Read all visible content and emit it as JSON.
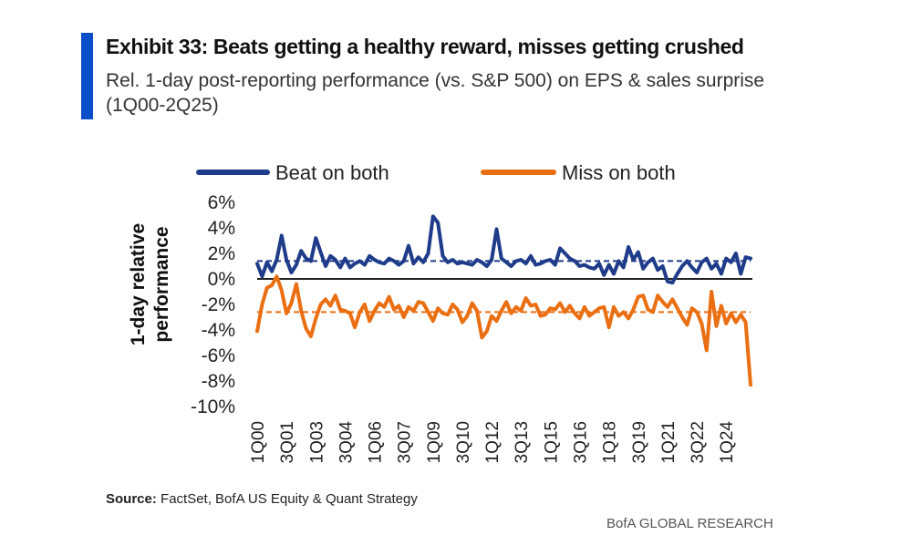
{
  "header": {
    "title": "Exhibit 33: Beats getting a healthy reward, misses getting crushed",
    "subtitle": "Rel. 1-day post-reporting performance (vs. S&P 500) on EPS & sales surprise (1Q00-2Q25)"
  },
  "footer": {
    "source_label": "Source:",
    "source_text": "FactSet, BofA US Equity & Quant Strategy",
    "brand": "BofA GLOBAL RESEARCH"
  },
  "colors": {
    "accent": "#0a4fc9",
    "beat": "#1f3c8a",
    "miss": "#ea6f12"
  },
  "chart_data": {
    "type": "line",
    "title": "Exhibit 33: Beats getting a healthy reward, misses getting crushed",
    "ylabel": "1-day relative performance",
    "xlabel": "",
    "ylim": [
      -10,
      6
    ],
    "y_ticks": [
      "6%",
      "4%",
      "2%",
      "0%",
      "-2%",
      "-4%",
      "-6%",
      "-8%",
      "-10%"
    ],
    "y_tick_values": [
      6,
      4,
      2,
      0,
      -2,
      -4,
      -6,
      -8,
      -10
    ],
    "x_start": "1Q00",
    "x_end": "2Q25",
    "n_points": 102,
    "x_ticks": [
      {
        "label": "1Q00",
        "index": 0
      },
      {
        "label": "3Q01",
        "index": 6
      },
      {
        "label": "1Q03",
        "index": 12
      },
      {
        "label": "3Q04",
        "index": 18
      },
      {
        "label": "1Q06",
        "index": 24
      },
      {
        "label": "3Q07",
        "index": 30
      },
      {
        "label": "1Q09",
        "index": 36
      },
      {
        "label": "3Q10",
        "index": 42
      },
      {
        "label": "1Q12",
        "index": 48
      },
      {
        "label": "3Q13",
        "index": 54
      },
      {
        "label": "1Q15",
        "index": 60
      },
      {
        "label": "3Q16",
        "index": 66
      },
      {
        "label": "1Q18",
        "index": 72
      },
      {
        "label": "3Q19",
        "index": 78
      },
      {
        "label": "1Q21",
        "index": 84
      },
      {
        "label": "3Q22",
        "index": 90
      },
      {
        "label": "1Q24",
        "index": 96
      }
    ],
    "legend_position": "top",
    "series": [
      {
        "name": "Beat on both",
        "average": 1.4,
        "values": [
          1.2,
          0.2,
          1.3,
          0.6,
          1.5,
          3.4,
          1.5,
          0.5,
          1.1,
          2.2,
          1.6,
          1.4,
          3.2,
          2.1,
          1.0,
          1.8,
          1.5,
          0.9,
          1.6,
          0.9,
          1.2,
          1.4,
          1.1,
          1.8,
          1.5,
          1.3,
          1.2,
          1.6,
          1.4,
          1.1,
          1.4,
          2.6,
          1.2,
          1.7,
          1.3,
          2.0,
          4.9,
          4.4,
          1.8,
          1.3,
          1.5,
          1.2,
          1.3,
          1.2,
          1.1,
          1.5,
          1.3,
          1.0,
          1.5,
          3.9,
          1.6,
          1.3,
          1.0,
          1.4,
          1.5,
          1.2,
          1.8,
          1.1,
          1.2,
          1.4,
          1.5,
          1.1,
          2.4,
          2.0,
          1.6,
          1.4,
          1.0,
          1.1,
          0.9,
          0.8,
          1.2,
          0.3,
          1.1,
          0.4,
          1.4,
          0.9,
          2.5,
          1.5,
          2.1,
          0.8,
          1.3,
          1.6,
          0.7,
          1.0,
          -0.2,
          -0.3,
          0.4,
          1.0,
          1.4,
          0.9,
          0.5,
          1.3,
          1.6,
          0.8,
          1.2,
          0.4,
          1.6,
          1.3,
          2.0,
          0.4,
          1.7,
          1.6
        ],
        "color": "#1f3c8a"
      },
      {
        "name": "Miss on both",
        "average": -2.6,
        "values": [
          -4.1,
          -2.0,
          -0.7,
          -0.5,
          0.2,
          -0.9,
          -2.7,
          -1.9,
          -0.4,
          -2.5,
          -3.9,
          -4.5,
          -3.1,
          -2.0,
          -1.6,
          -2.1,
          -1.3,
          -2.4,
          -2.5,
          -2.7,
          -3.8,
          -2.6,
          -2.0,
          -3.3,
          -2.5,
          -1.9,
          -2.2,
          -1.4,
          -2.4,
          -2.1,
          -3.0,
          -2.2,
          -2.5,
          -1.8,
          -1.9,
          -2.6,
          -3.3,
          -2.3,
          -2.7,
          -2.8,
          -2.0,
          -2.4,
          -3.4,
          -2.9,
          -1.9,
          -2.5,
          -4.6,
          -4.1,
          -2.9,
          -3.3,
          -2.5,
          -1.8,
          -2.7,
          -2.2,
          -2.5,
          -1.5,
          -2.1,
          -2.0,
          -2.9,
          -2.8,
          -2.3,
          -2.4,
          -1.9,
          -2.6,
          -2.1,
          -2.7,
          -3.1,
          -2.2,
          -2.9,
          -2.6,
          -2.3,
          -2.2,
          -3.8,
          -2.2,
          -2.9,
          -2.6,
          -3.1,
          -2.4,
          -1.4,
          -1.3,
          -2.4,
          -2.6,
          -1.3,
          -1.8,
          -2.2,
          -1.6,
          -2.3,
          -3.0,
          -3.6,
          -2.3,
          -2.6,
          -3.5,
          -5.6,
          -1.0,
          -3.7,
          -2.1,
          -3.5,
          -2.7,
          -3.4,
          -2.8,
          -3.4,
          -8.3
        ],
        "color": "#ea6f12"
      }
    ]
  }
}
